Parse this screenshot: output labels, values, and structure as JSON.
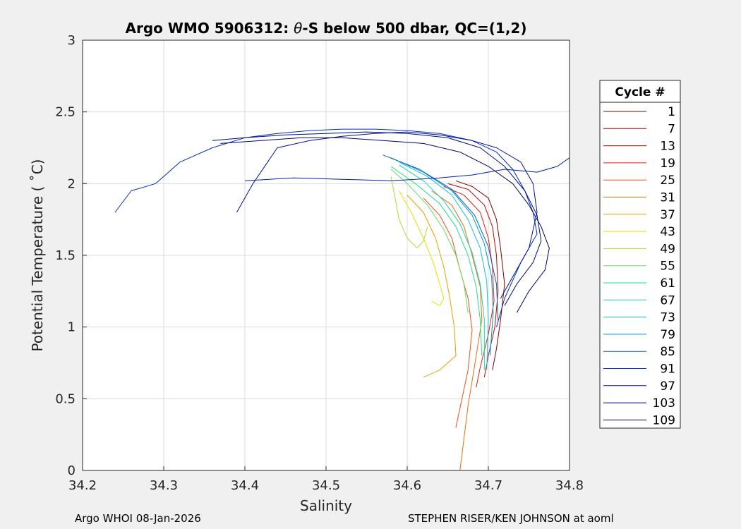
{
  "chart_data": {
    "type": "line",
    "title_prefix": "Argo WMO 5906312: ",
    "title_theta": "θ",
    "title_suffix": "-S below 500 dbar,  QC=(1,2)",
    "xlabel": "Salinity",
    "ylabel": "Potential Temperature ( ˚C)",
    "xlim": [
      34.2,
      34.8
    ],
    "ylim": [
      0,
      3
    ],
    "xticks": [
      34.2,
      34.3,
      34.4,
      34.5,
      34.6,
      34.7,
      34.8
    ],
    "yticks": [
      0,
      0.5,
      1,
      1.5,
      2,
      2.5,
      3
    ],
    "grid": true,
    "legend": {
      "title": "Cycle #",
      "placement": "right",
      "entries": [
        {
          "label": "1",
          "color": "#7f0000"
        },
        {
          "label": "7",
          "color": "#a50000"
        },
        {
          "label": "13",
          "color": "#cc0000"
        },
        {
          "label": "19",
          "color": "#ee1c10"
        },
        {
          "label": "25",
          "color": "#f44b1a"
        },
        {
          "label": "31",
          "color": "#f26b0c"
        },
        {
          "label": "37",
          "color": "#e8a000"
        },
        {
          "label": "43",
          "color": "#e8e000"
        },
        {
          "label": "49",
          "color": "#a8e030"
        },
        {
          "label": "55",
          "color": "#5fe060"
        },
        {
          "label": "61",
          "color": "#20e08a"
        },
        {
          "label": "67",
          "color": "#10d8c0"
        },
        {
          "label": "73",
          "color": "#10c0e0"
        },
        {
          "label": "79",
          "color": "#0094d8"
        },
        {
          "label": "85",
          "color": "#0060d0"
        },
        {
          "label": "91",
          "color": "#0030c0"
        },
        {
          "label": "97",
          "color": "#0010a0"
        },
        {
          "label": "103",
          "color": "#000c80"
        },
        {
          "label": "109",
          "color": "#000070"
        }
      ]
    },
    "series": [
      {
        "color": "#7f0000",
        "x": [
          34.66,
          34.68,
          34.7,
          34.71,
          34.715,
          34.72,
          34.715,
          34.71,
          34.705
        ],
        "y": [
          2.02,
          1.98,
          1.9,
          1.75,
          1.55,
          1.3,
          1.05,
          0.85,
          0.7
        ]
      },
      {
        "color": "#cc0000",
        "x": [
          34.65,
          34.675,
          34.695,
          34.705,
          34.71,
          34.712,
          34.708,
          34.7,
          34.695
        ],
        "y": [
          2.0,
          1.96,
          1.85,
          1.7,
          1.5,
          1.25,
          1.0,
          0.8,
          0.65
        ]
      },
      {
        "color": "#ee1c10",
        "x": [
          34.645,
          34.67,
          34.69,
          34.7,
          34.705,
          34.707,
          34.7,
          34.69,
          34.685
        ],
        "y": [
          1.98,
          1.92,
          1.8,
          1.62,
          1.42,
          1.18,
          0.95,
          0.72,
          0.58
        ]
      },
      {
        "color": "#f26b0c",
        "x": [
          34.63,
          34.655,
          34.67,
          34.68,
          34.69,
          34.692,
          34.685,
          34.675,
          34.665
        ],
        "y": [
          1.95,
          1.85,
          1.7,
          1.5,
          1.28,
          1.05,
          0.8,
          0.45,
          0.0
        ]
      },
      {
        "color": "#f44b1a",
        "x": [
          34.62,
          34.64,
          34.655,
          34.665,
          34.675,
          34.68,
          34.675,
          34.66
        ],
        "y": [
          1.9,
          1.78,
          1.62,
          1.4,
          1.2,
          0.98,
          0.7,
          0.3
        ]
      },
      {
        "color": "#e8a000",
        "x": [
          34.6,
          34.62,
          34.635,
          34.645,
          34.652,
          34.658,
          34.66,
          34.64,
          34.62
        ],
        "y": [
          1.92,
          1.8,
          1.62,
          1.42,
          1.22,
          1.0,
          0.8,
          0.7,
          0.65
        ]
      },
      {
        "color": "#e8e000",
        "x": [
          34.59,
          34.605,
          34.62,
          34.632,
          34.64,
          34.645,
          34.64,
          34.63
        ],
        "y": [
          1.95,
          1.8,
          1.62,
          1.45,
          1.3,
          1.2,
          1.15,
          1.18
        ]
      },
      {
        "color": "#a8e030",
        "x": [
          34.58,
          34.585,
          34.59,
          34.6,
          34.612,
          34.62,
          34.625
        ],
        "y": [
          2.05,
          1.9,
          1.75,
          1.62,
          1.55,
          1.6,
          1.7
        ]
      },
      {
        "color": "#5fe060",
        "x": [
          34.58,
          34.6,
          34.625,
          34.645,
          34.66,
          34.67,
          34.675
        ],
        "y": [
          2.1,
          2.0,
          1.85,
          1.68,
          1.5,
          1.3,
          1.1
        ]
      },
      {
        "color": "#20e08a",
        "x": [
          34.58,
          34.61,
          34.64,
          34.66,
          34.675,
          34.685,
          34.69,
          34.692
        ],
        "y": [
          2.12,
          2.0,
          1.86,
          1.7,
          1.5,
          1.28,
          1.05,
          0.8
        ]
      },
      {
        "color": "#10d8c0",
        "x": [
          34.59,
          34.62,
          34.645,
          34.665,
          34.68,
          34.69,
          34.695,
          34.695
        ],
        "y": [
          2.13,
          2.02,
          1.88,
          1.72,
          1.52,
          1.3,
          1.05,
          0.7
        ]
      },
      {
        "color": "#10c0e0",
        "x": [
          34.59,
          34.625,
          34.655,
          34.675,
          34.69,
          34.698,
          34.7,
          34.698
        ],
        "y": [
          2.15,
          2.05,
          1.92,
          1.75,
          1.55,
          1.32,
          1.05,
          0.7
        ]
      },
      {
        "color": "#0094d8",
        "x": [
          34.58,
          34.62,
          34.655,
          34.68,
          34.695,
          34.704,
          34.706,
          34.702
        ],
        "y": [
          2.18,
          2.08,
          1.95,
          1.78,
          1.58,
          1.35,
          1.1,
          0.8
        ]
      },
      {
        "color": "#0060d0",
        "x": [
          34.57,
          34.615,
          34.655,
          34.683,
          34.7,
          34.71,
          34.712
        ],
        "y": [
          2.2,
          2.1,
          1.96,
          1.78,
          1.56,
          1.3,
          1.05
        ]
      },
      {
        "color": "#0030c0",
        "x": [
          34.24,
          34.26,
          34.29,
          34.32,
          34.36,
          34.4,
          34.44,
          34.48,
          34.52,
          34.56,
          34.6,
          34.64,
          34.68,
          34.71,
          34.73,
          34.745,
          34.755,
          34.76,
          34.74,
          34.72,
          34.71
        ],
        "y": [
          1.8,
          1.95,
          2.0,
          2.15,
          2.25,
          2.32,
          2.35,
          2.37,
          2.38,
          2.38,
          2.37,
          2.35,
          2.3,
          2.22,
          2.1,
          1.95,
          1.8,
          1.65,
          1.45,
          1.2,
          1.0
        ]
      },
      {
        "color": "#0010a0",
        "x": [
          34.39,
          34.41,
          34.44,
          34.48,
          34.52,
          34.56,
          34.6,
          34.64,
          34.68,
          34.71,
          34.74,
          34.755,
          34.76,
          34.75,
          34.73,
          34.715
        ],
        "y": [
          1.8,
          2.0,
          2.25,
          2.3,
          2.33,
          2.35,
          2.36,
          2.34,
          2.3,
          2.25,
          2.15,
          2.0,
          1.8,
          1.55,
          1.35,
          1.2
        ]
      },
      {
        "color": "#000c80",
        "x": [
          34.36,
          34.4,
          34.45,
          34.5,
          34.55,
          34.6,
          34.65,
          34.69,
          34.72,
          34.745,
          34.76,
          34.765,
          34.755,
          34.735,
          34.72
        ],
        "y": [
          2.3,
          2.32,
          2.34,
          2.35,
          2.36,
          2.35,
          2.32,
          2.25,
          2.12,
          1.95,
          1.78,
          1.6,
          1.45,
          1.3,
          1.15
        ]
      },
      {
        "color": "#000070",
        "x": [
          34.37,
          34.42,
          34.47,
          34.52,
          34.57,
          34.62,
          34.665,
          34.7,
          34.73,
          34.75,
          34.765,
          34.775,
          34.77,
          34.75,
          34.735
        ],
        "y": [
          2.28,
          2.3,
          2.32,
          2.32,
          2.3,
          2.28,
          2.22,
          2.12,
          2.0,
          1.85,
          1.7,
          1.55,
          1.4,
          1.25,
          1.1
        ]
      },
      {
        "color": "#0020b0",
        "x": [
          34.4,
          34.46,
          34.52,
          34.58,
          34.64,
          34.68,
          34.72,
          34.76,
          34.785,
          34.8
        ],
        "y": [
          2.02,
          2.04,
          2.03,
          2.02,
          2.04,
          2.06,
          2.1,
          2.08,
          2.12,
          2.18
        ]
      }
    ]
  },
  "footer": {
    "left": "Argo WHOI 08-Jan-2026",
    "right": "STEPHEN RISER/KEN JOHNSON at aoml"
  }
}
